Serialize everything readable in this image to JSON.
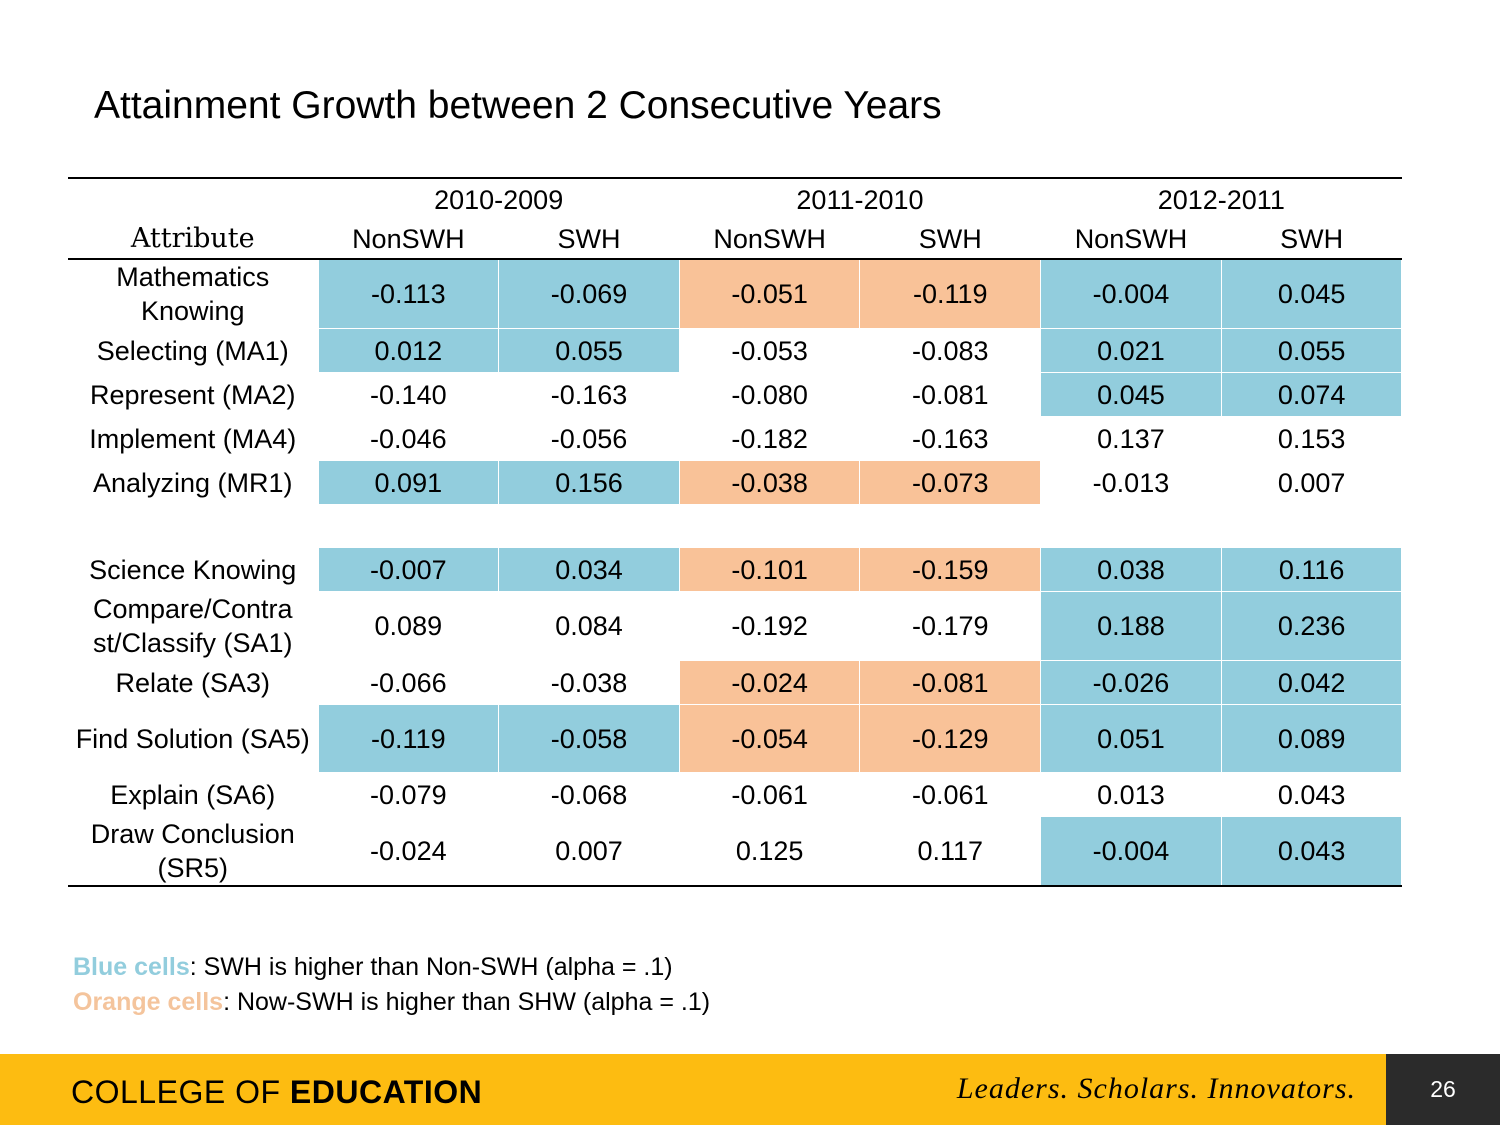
{
  "title": "Attainment Growth between 2 Consecutive Years",
  "table": {
    "attribute_label": "Attribute",
    "years": [
      "2010-2009",
      "2011-2010",
      "2012-2011"
    ],
    "groups": [
      "NonSWH",
      "SWH",
      "NonSWH",
      "SWH",
      "NonSWH",
      "SWH"
    ],
    "rows": [
      {
        "label": "Mathematics Knowing",
        "values": [
          "-0.113",
          "-0.069",
          "-0.051",
          "-0.119",
          "-0.004",
          "0.045"
        ]
      },
      {
        "label": "Selecting (MA1)",
        "values": [
          "0.012",
          "0.055",
          "-0.053",
          "-0.083",
          "0.021",
          "0.055"
        ]
      },
      {
        "label": "Represent (MA2)",
        "values": [
          "-0.140",
          "-0.163",
          "-0.080",
          "-0.081",
          "0.045",
          "0.074"
        ]
      },
      {
        "label": "Implement (MA4)",
        "values": [
          "-0.046",
          "-0.056",
          "-0.182",
          "-0.163",
          "0.137",
          "0.153"
        ]
      },
      {
        "label": "Analyzing (MR1)",
        "values": [
          "0.091",
          "0.156",
          "-0.038",
          "-0.073",
          "-0.013",
          "0.007"
        ]
      },
      {
        "label": "Science Knowing",
        "values": [
          "-0.007",
          "0.034",
          "-0.101",
          "-0.159",
          "0.038",
          "0.116"
        ]
      },
      {
        "label": "Compare/Contrast/Classify (SA1)",
        "values": [
          "0.089",
          "0.084",
          "-0.192",
          "-0.179",
          "0.188",
          "0.236"
        ]
      },
      {
        "label": "Relate (SA3)",
        "values": [
          "-0.066",
          "-0.038",
          "-0.024",
          "-0.081",
          "-0.026",
          "0.042"
        ]
      },
      {
        "label": "Find Solution (SA5)",
        "values": [
          "-0.119",
          "-0.058",
          "-0.054",
          "-0.129",
          "0.051",
          "0.089"
        ]
      },
      {
        "label": "Explain (SA6)",
        "values": [
          "-0.079",
          "-0.068",
          "-0.061",
          "-0.061",
          "0.013",
          "0.043"
        ]
      },
      {
        "label": "Draw Conclusion (SR5)",
        "values": [
          "-0.024",
          "0.007",
          "0.125",
          "0.117",
          "-0.004",
          "0.043"
        ]
      }
    ]
  },
  "legend": {
    "blue_key": "Blue cells",
    "blue_text": ": SWH is higher than Non-SWH (alpha = .1)",
    "orange_key": "Orange cells",
    "orange_text": ": Now-SWH is higher than SHW (alpha = .1)"
  },
  "colors": {
    "blue": "#92cddd",
    "orange": "#f9c298",
    "footer": "#fdbc11",
    "page_box": "#2b2b2b"
  },
  "footer": {
    "college_prefix": "COLLEGE OF ",
    "college_bold": "EDUCATION",
    "motto": "Leaders. Scholars. Innovators.",
    "page_number": "26"
  }
}
